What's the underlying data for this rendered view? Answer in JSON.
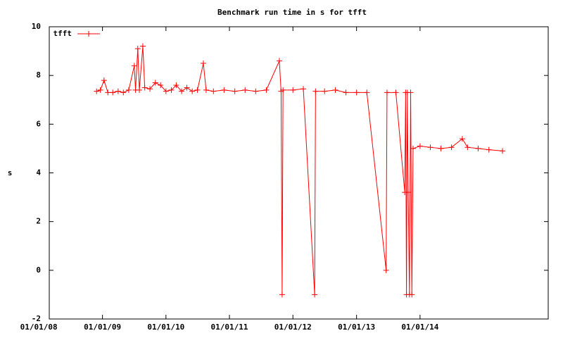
{
  "chart_data": {
    "type": "line",
    "title": "Benchmark run time in s for tfft",
    "y_label": "s",
    "legend": "top-left",
    "grid": false,
    "xlim": [
      "2008-03-01",
      "2016-01-08"
    ],
    "xticks": [
      {
        "value": "2008-01-01",
        "label": "01/01/08"
      },
      {
        "value": "2009-01-01",
        "label": "01/01/09"
      },
      {
        "value": "2010-01-01",
        "label": "01/01/10"
      },
      {
        "value": "2011-01-01",
        "label": "01/01/11"
      },
      {
        "value": "2012-01-01",
        "label": "01/01/12"
      },
      {
        "value": "2013-01-01",
        "label": "01/01/13"
      },
      {
        "value": "2014-01-01",
        "label": "01/01/14"
      }
    ],
    "ylim": [
      -2,
      10
    ],
    "yticks": [
      -2,
      0,
      2,
      4,
      6,
      8,
      10
    ],
    "x": [
      "2008-11-28",
      "2008-12-20",
      "2009-01-10",
      "2009-02-01",
      "2009-03-01",
      "2009-04-01",
      "2009-05-01",
      "2009-06-01",
      "2009-07-03",
      "2009-07-10",
      "2009-07-23",
      "2009-08-01",
      "2009-08-21",
      "2009-09-01",
      "2009-10-01",
      "2009-11-01",
      "2009-12-01",
      "2010-01-01",
      "2010-02-01",
      "2010-03-01",
      "2010-04-01",
      "2010-05-01",
      "2010-06-01",
      "2010-07-01",
      "2010-08-04",
      "2010-08-20",
      "2010-10-01",
      "2010-12-01",
      "2011-02-01",
      "2011-04-01",
      "2011-06-01",
      "2011-08-01",
      "2011-10-15",
      "2011-10-25",
      "2011-10-31",
      "2011-11-05",
      "2012-01-01",
      "2012-03-01",
      "2012-05-05",
      "2012-05-10",
      "2012-07-01",
      "2012-09-01",
      "2012-11-01",
      "2013-01-01",
      "2013-03-01",
      "2013-06-20",
      "2013-06-25",
      "2013-08-15",
      "2013-10-05",
      "2013-10-10",
      "2013-10-15",
      "2013-10-20",
      "2013-10-25",
      "2013-11-01",
      "2013-11-08",
      "2013-11-15",
      "2013-11-22",
      "2014-01-01",
      "2014-03-01",
      "2014-05-01",
      "2014-07-01",
      "2014-09-01",
      "2014-10-01",
      "2014-12-01",
      "2015-02-01",
      "2015-04-20"
    ],
    "series": [
      {
        "name": "tfft",
        "color": "#ff0000",
        "values": [
          7.35,
          7.4,
          7.8,
          7.3,
          7.3,
          7.35,
          7.3,
          7.4,
          8.4,
          7.4,
          9.1,
          7.4,
          9.2,
          7.5,
          7.45,
          7.7,
          7.6,
          7.35,
          7.4,
          7.6,
          7.35,
          7.5,
          7.35,
          7.4,
          8.5,
          7.4,
          7.35,
          7.4,
          7.35,
          7.4,
          7.35,
          7.4,
          8.6,
          7.35,
          -1,
          7.4,
          7.4,
          7.45,
          -1,
          7.35,
          7.35,
          7.4,
          7.3,
          7.3,
          7.3,
          0,
          7.3,
          7.3,
          3.2,
          7.3,
          -1,
          7.3,
          3.2,
          -1,
          7.3,
          -1,
          5.0,
          5.1,
          5.05,
          5.0,
          5.05,
          5.4,
          5.05,
          5.0,
          4.95,
          4.9
        ]
      }
    ]
  }
}
